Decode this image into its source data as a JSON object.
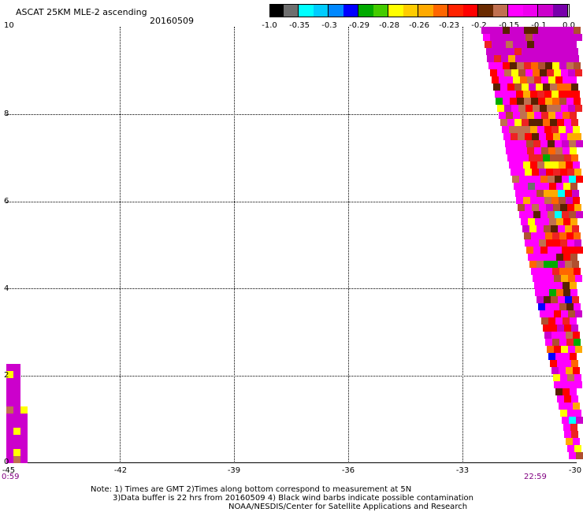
{
  "header": {
    "title": "ASCAT 25KM MLE-2 ascending",
    "date": "20160509"
  },
  "colorbar": {
    "colors": [
      "#000000",
      "#6e6e6e",
      "#00ffff",
      "#00aaff",
      "#0000ff",
      "#00aa00",
      "#66ff00",
      "#ffff00",
      "#ffaa00",
      "#ff6600",
      "#ff0000",
      "#cc0033",
      "#5a2000",
      "#c07050",
      "#ff00ff",
      "#cc00cc",
      "#7700aa"
    ],
    "labels": [
      "-1.0",
      "-0.35",
      "-0.3",
      "-0.29",
      "-0.28",
      "-0.26",
      "-0.23",
      "-0.2",
      "-0.15",
      "-0.1",
      "0.0"
    ]
  },
  "axes": {
    "x_ticks": [
      "-45",
      "-42",
      "-39",
      "-36",
      "-33",
      "-30"
    ],
    "y_ticks": [
      "0",
      "2",
      "4",
      "6",
      "8",
      "10"
    ]
  },
  "times": {
    "left": "0:59",
    "right": "22:59"
  },
  "notes": {
    "line1": "Note: 1) Times are GMT 2)Times along bottom correspond to measurement at 5N",
    "line2": "3)Data buffer is 22 hrs from 20160509 4) Black wind barbs indicate possible contamination",
    "line3": "NOAA/NESDIS/Center for Satellite Applications and Research"
  }
}
